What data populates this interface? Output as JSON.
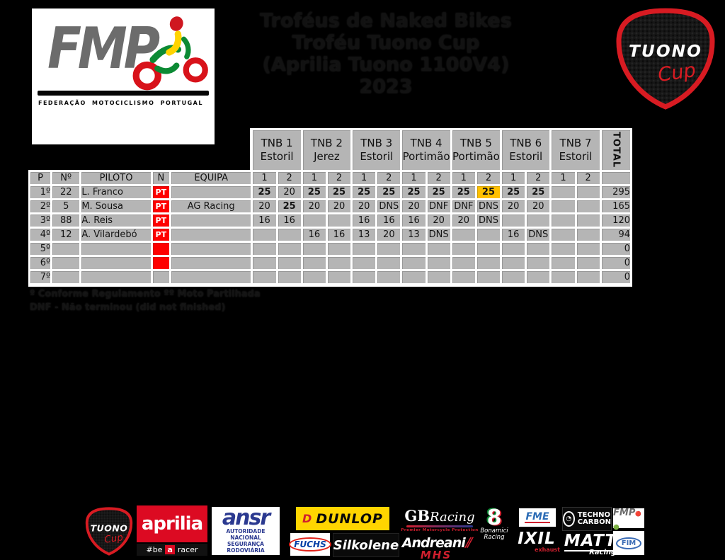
{
  "header": {
    "title_lines": [
      "Troféus de Naked Bikes",
      "Troféu Tuono Cup",
      "(Aprilia Tuono 1100V4)",
      "2023"
    ],
    "fmp": {
      "text": "FMP",
      "sub": "FEDERAÇÃO MOTOCICLISMO PORTUGAL"
    },
    "tuono": {
      "line1": "TUONO",
      "line2": "Cup"
    }
  },
  "table": {
    "left_headers": [
      "P",
      "Nº",
      "PILOTO",
      "N",
      "EQUIPA"
    ],
    "events": [
      {
        "name": "TNB 1",
        "venue": "Estoril"
      },
      {
        "name": "TNB 2",
        "venue": "Jerez"
      },
      {
        "name": "TNB 3",
        "venue": "Estoril"
      },
      {
        "name": "TNB 4",
        "venue": "Portimão"
      },
      {
        "name": "TNB 5",
        "venue": "Portimão"
      },
      {
        "name": "TNB 6",
        "venue": "Estoril"
      },
      {
        "name": "TNB 7",
        "venue": "Estoril"
      }
    ],
    "race_numbers": [
      "1",
      "2"
    ],
    "total_header": "TOTAL",
    "colors": {
      "cell": "#b5b5b5",
      "highlight": "#ffc000",
      "flag_red": "#fe0000"
    },
    "rows": [
      {
        "pos": "1º",
        "num": "22",
        "pilot": "L. Franco",
        "nat": "PT",
        "flag_red": true,
        "team": "",
        "scores": [
          {
            "v": "25",
            "bold": true
          },
          {
            "v": "20"
          },
          {
            "v": "25",
            "bold": true
          },
          {
            "v": "25",
            "bold": true
          },
          {
            "v": "25",
            "bold": true
          },
          {
            "v": "25",
            "bold": true
          },
          {
            "v": "25",
            "bold": true
          },
          {
            "v": "25",
            "bold": true
          },
          {
            "v": "25",
            "bold": true
          },
          {
            "v": "25",
            "bold": true,
            "highlight": true
          },
          {
            "v": "25",
            "bold": true
          },
          {
            "v": "25",
            "bold": true
          },
          {
            "v": ""
          },
          {
            "v": ""
          }
        ],
        "total": "295"
      },
      {
        "pos": "2º",
        "num": "5",
        "pilot": "M. Sousa",
        "nat": "PT",
        "flag_red": true,
        "team": "AG Racing",
        "scores": [
          {
            "v": "20"
          },
          {
            "v": "25",
            "bold": true
          },
          {
            "v": "20"
          },
          {
            "v": "20"
          },
          {
            "v": "20"
          },
          {
            "v": "DNS"
          },
          {
            "v": "20"
          },
          {
            "v": "DNF"
          },
          {
            "v": "DNF"
          },
          {
            "v": "DNS"
          },
          {
            "v": "20"
          },
          {
            "v": "20"
          },
          {
            "v": ""
          },
          {
            "v": ""
          }
        ],
        "total": "165"
      },
      {
        "pos": "3º",
        "num": "88",
        "pilot": "A. Reis",
        "nat": "PT",
        "flag_red": true,
        "team": "",
        "scores": [
          {
            "v": "16"
          },
          {
            "v": "16"
          },
          {
            "v": ""
          },
          {
            "v": ""
          },
          {
            "v": "16"
          },
          {
            "v": "16"
          },
          {
            "v": "16"
          },
          {
            "v": "20"
          },
          {
            "v": "20"
          },
          {
            "v": "DNS"
          },
          {
            "v": ""
          },
          {
            "v": ""
          },
          {
            "v": ""
          },
          {
            "v": ""
          }
        ],
        "total": "120"
      },
      {
        "pos": "4º",
        "num": "12",
        "pilot": "A. Vilardebó",
        "nat": "PT",
        "flag_red": true,
        "team": "",
        "scores": [
          {
            "v": ""
          },
          {
            "v": ""
          },
          {
            "v": "16"
          },
          {
            "v": "16"
          },
          {
            "v": "13"
          },
          {
            "v": "20"
          },
          {
            "v": "13"
          },
          {
            "v": "DNS"
          },
          {
            "v": ""
          },
          {
            "v": ""
          },
          {
            "v": "16"
          },
          {
            "v": "DNS"
          },
          {
            "v": ""
          },
          {
            "v": ""
          }
        ],
        "total": "94"
      },
      {
        "pos": "5º",
        "num": "",
        "pilot": "",
        "nat": "",
        "flag_red": true,
        "team": "",
        "scores": [
          {
            "v": ""
          },
          {
            "v": ""
          },
          {
            "v": ""
          },
          {
            "v": ""
          },
          {
            "v": ""
          },
          {
            "v": ""
          },
          {
            "v": ""
          },
          {
            "v": ""
          },
          {
            "v": ""
          },
          {
            "v": ""
          },
          {
            "v": ""
          },
          {
            "v": ""
          },
          {
            "v": ""
          },
          {
            "v": ""
          }
        ],
        "total": "0"
      },
      {
        "pos": "6º",
        "num": "",
        "pilot": "",
        "nat": "",
        "flag_red": true,
        "team": "",
        "scores": [
          {
            "v": ""
          },
          {
            "v": ""
          },
          {
            "v": ""
          },
          {
            "v": ""
          },
          {
            "v": ""
          },
          {
            "v": ""
          },
          {
            "v": ""
          },
          {
            "v": ""
          },
          {
            "v": ""
          },
          {
            "v": ""
          },
          {
            "v": ""
          },
          {
            "v": ""
          },
          {
            "v": ""
          },
          {
            "v": ""
          }
        ],
        "total": "0"
      },
      {
        "pos": "7º",
        "num": "",
        "pilot": "",
        "nat": "",
        "flag_red": false,
        "team": "",
        "scores": [
          {
            "v": ""
          },
          {
            "v": ""
          },
          {
            "v": ""
          },
          {
            "v": ""
          },
          {
            "v": ""
          },
          {
            "v": ""
          },
          {
            "v": ""
          },
          {
            "v": ""
          },
          {
            "v": ""
          },
          {
            "v": ""
          },
          {
            "v": ""
          },
          {
            "v": ""
          },
          {
            "v": ""
          },
          {
            "v": ""
          }
        ],
        "total": "0"
      }
    ]
  },
  "footnotes": [
    "º Conforme Regulamento  ºº Moto Partilhada",
    "DNF - Não terminou (did not finished)"
  ],
  "sponsors": {
    "tuono": {
      "line1": "TUONO",
      "line2": "Cup"
    },
    "aprilia": {
      "text": "aprilia",
      "tag_pre": "#be",
      "tag_mid": "a",
      "tag_post": "racer"
    },
    "ansr": {
      "text": "ansr",
      "sub1": "AUTORIDADE NACIONAL",
      "sub2": "SEGURANÇA RODOVIÁRIA"
    },
    "dunlop": {
      "d": "D",
      "text": "DUNLOP"
    },
    "fuchs": {
      "text": "FUCHS"
    },
    "silkolene": {
      "text": "Silkolene"
    },
    "gbracing": {
      "gb": "GB",
      "racing": "Racing",
      "sub": "Premier Motorcycle Protection"
    },
    "andreani": {
      "text": "Andreani",
      "slash": "⫽",
      "sub": "MHS"
    },
    "bonamici": {
      "glyph": "8",
      "line1": "Bonamici",
      "line2": "Racing"
    },
    "fme": {
      "text": "FME"
    },
    "ixil": {
      "text": "IXIL",
      "sub": "exhaust"
    },
    "techno": {
      "icon": "◔",
      "line1": "TECHNO",
      "line2": "CARBON"
    },
    "matt": {
      "text": "MATT",
      "sub": "Racing."
    },
    "fmp_small": {
      "text": "FMP",
      "dots": "🔴🟢"
    },
    "fim": {
      "text": "FIM"
    }
  }
}
